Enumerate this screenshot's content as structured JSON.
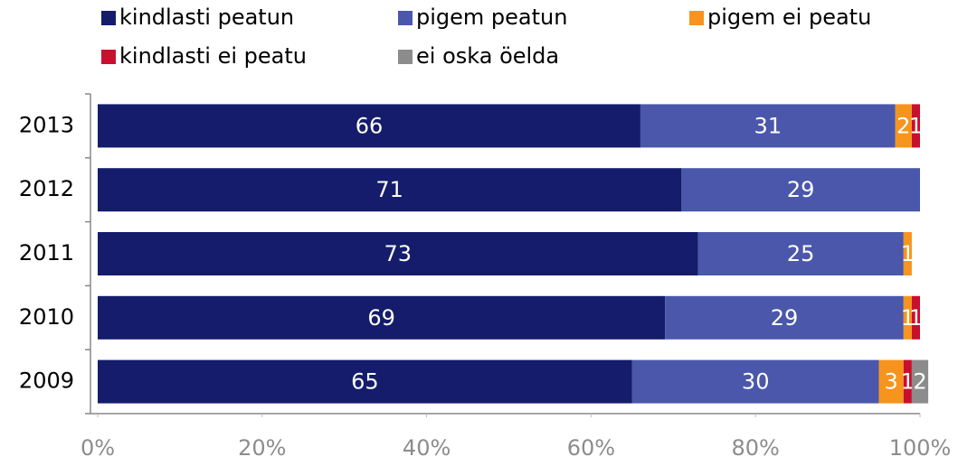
{
  "chart_data": {
    "type": "stacked-bar-horizontal",
    "categories": [
      "2013",
      "2012",
      "2011",
      "2010",
      "2009"
    ],
    "series": [
      {
        "name": "kindlasti peatun",
        "color": "#141c6b",
        "values": [
          66,
          71,
          73,
          69,
          65
        ]
      },
      {
        "name": "pigem peatun",
        "color": "#4a57ab",
        "values": [
          31,
          29,
          25,
          29,
          30
        ]
      },
      {
        "name": "pigem ei peatu",
        "color": "#f7941d",
        "values": [
          2,
          null,
          1,
          1,
          3
        ]
      },
      {
        "name": "kindlasti ei peatu",
        "color": "#c8102e",
        "values": [
          1,
          null,
          null,
          1,
          1
        ]
      },
      {
        "name": "ei oska öelda",
        "color": "#8c8c8c",
        "values": [
          null,
          null,
          null,
          null,
          2
        ]
      }
    ],
    "xlim": [
      0,
      100
    ],
    "xticks": [
      {
        "value": 0,
        "label": "0%"
      },
      {
        "value": 20,
        "label": "20%"
      },
      {
        "value": 40,
        "label": "40%"
      },
      {
        "value": 60,
        "label": "60%"
      },
      {
        "value": 80,
        "label": "80%"
      },
      {
        "value": 100,
        "label": "100%"
      }
    ],
    "legend": "top"
  }
}
